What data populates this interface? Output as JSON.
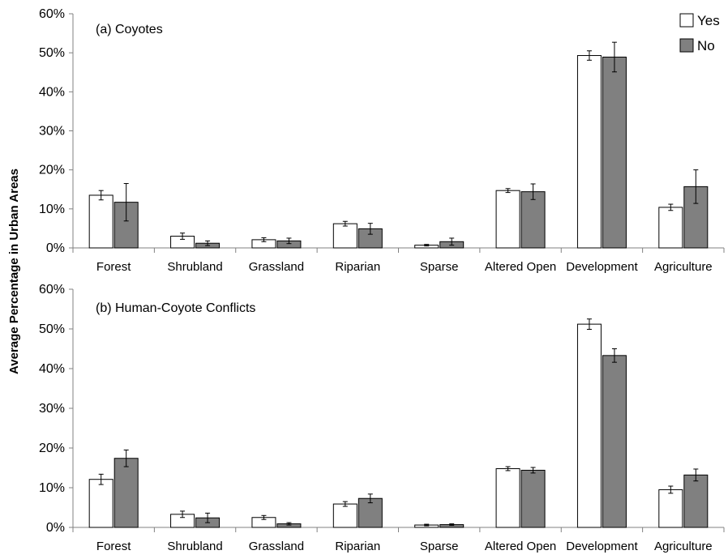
{
  "ylabel": "Average Percentage in Urban Areas",
  "legend": {
    "entries": [
      {
        "label": "Yes",
        "color": "#ffffff"
      },
      {
        "label": "No",
        "color": "#808080"
      }
    ],
    "placement": "top-right"
  },
  "chart_data": [
    {
      "type": "bar",
      "title": "(a) Coyotes",
      "categories": [
        "Forest",
        "Shrubland",
        "Grassland",
        "Riparian",
        "Sparse",
        "Altered Open",
        "Development",
        "Agriculture"
      ],
      "ylim": [
        0,
        60
      ],
      "yticks": [
        "0%",
        "10%",
        "20%",
        "30%",
        "40%",
        "50%",
        "60%"
      ],
      "grid": false,
      "series": [
        {
          "name": "Yes",
          "color": "#ffffff",
          "values": [
            13.5,
            3.0,
            2.1,
            6.2,
            0.7,
            14.7,
            49.3,
            10.4
          ],
          "errors": [
            1.2,
            0.8,
            0.5,
            0.6,
            0.2,
            0.5,
            1.2,
            0.8
          ]
        },
        {
          "name": "No",
          "color": "#808080",
          "values": [
            11.7,
            1.2,
            1.8,
            4.9,
            1.6,
            14.4,
            48.9,
            15.7
          ],
          "errors": [
            4.8,
            0.6,
            0.7,
            1.4,
            0.9,
            2.0,
            3.8,
            4.3
          ]
        }
      ]
    },
    {
      "type": "bar",
      "title": "(b) Human-Coyote Conflicts",
      "categories": [
        "Forest",
        "Shrubland",
        "Grassland",
        "Riparian",
        "Sparse",
        "Altered Open",
        "Development",
        "Agriculture"
      ],
      "ylim": [
        0,
        60
      ],
      "yticks": [
        "0%",
        "10%",
        "20%",
        "30%",
        "40%",
        "50%",
        "60%"
      ],
      "grid": false,
      "series": [
        {
          "name": "Yes",
          "color": "#ffffff",
          "values": [
            12.1,
            3.3,
            2.5,
            5.9,
            0.6,
            14.8,
            51.2,
            9.5
          ],
          "errors": [
            1.3,
            0.8,
            0.5,
            0.6,
            0.2,
            0.5,
            1.3,
            0.9
          ]
        },
        {
          "name": "No",
          "color": "#808080",
          "values": [
            17.4,
            2.4,
            0.9,
            7.3,
            0.7,
            14.4,
            43.3,
            13.2
          ],
          "errors": [
            2.1,
            1.2,
            0.3,
            1.1,
            0.2,
            0.7,
            1.7,
            1.5
          ]
        }
      ]
    }
  ]
}
